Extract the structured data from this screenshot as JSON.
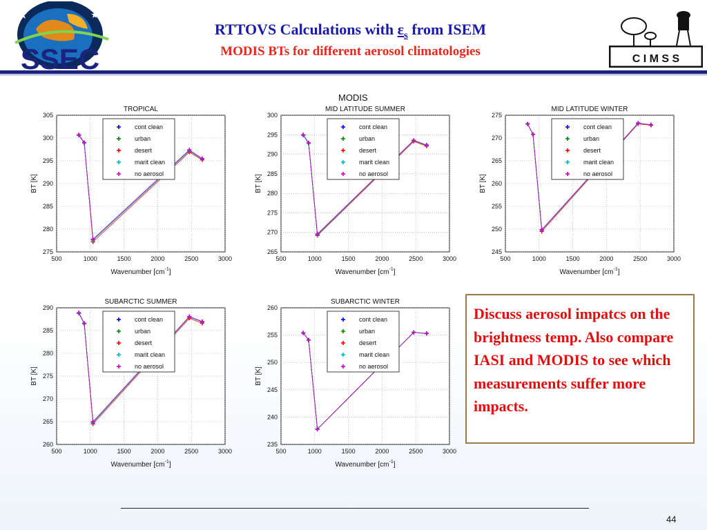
{
  "header": {
    "title_prefix": "RTTOVS Calculations with ",
    "title_symbol": "ε",
    "title_sub": "s",
    "title_suffix": " from ISEM",
    "subtitle": "MODIS BTs for different aerosol climatologies",
    "ssec_logo_text": "SSEC",
    "cimss_logo_text": "C I M S S"
  },
  "figure_supertitle": "MODIS",
  "note_text": "Discuss aerosol impatcs on the brightness temp. Also compare IASI and MODIS to see which measurements suffer more impacts.",
  "page_number": "44",
  "colors": {
    "title_blue": "#1a1aa8",
    "title_red": "#e8281c",
    "header_rule": "#1a237e",
    "note_text": "#e01010",
    "note_border": "#9a7a4a"
  },
  "chart_data": [
    {
      "type": "line",
      "title": "TROPICAL",
      "xlabel": "Wavenumber [cm",
      "xlabel_sup": "-1",
      "xlabel_end": "]",
      "ylabel": "BT [K]",
      "xlim": [
        500,
        3000
      ],
      "ylim": [
        275,
        305
      ],
      "xticks": [
        500,
        1000,
        1500,
        2000,
        2500,
        3000
      ],
      "yticks": [
        275,
        280,
        285,
        290,
        295,
        300,
        305
      ],
      "grid": true,
      "legend_position": "top-center",
      "x": [
        830,
        910,
        1040,
        2470,
        2660
      ],
      "series": [
        {
          "name": "cont clean",
          "color": "#0000ff",
          "values": [
            300.6,
            298.9,
            277.6,
            297.2,
            295.4
          ]
        },
        {
          "name": "urban",
          "color": "#008800",
          "values": [
            300.6,
            298.9,
            277.6,
            297.2,
            295.4
          ]
        },
        {
          "name": "desert",
          "color": "#ff0000",
          "values": [
            300.7,
            299.0,
            277.2,
            296.9,
            295.2
          ]
        },
        {
          "name": "marit clean",
          "color": "#00bbbb",
          "values": [
            300.6,
            298.9,
            277.6,
            297.2,
            295.4
          ]
        },
        {
          "name": "no aerosol",
          "color": "#cc00cc",
          "values": [
            300.7,
            299.0,
            277.8,
            297.4,
            295.5
          ]
        }
      ]
    },
    {
      "type": "line",
      "title": "MID LATITUDE SUMMER",
      "xlabel": "Wavenumber [cm",
      "xlabel_sup": "-1",
      "xlabel_end": "]",
      "ylabel": "BT [K]",
      "xlim": [
        500,
        3000
      ],
      "ylim": [
        265,
        300
      ],
      "xticks": [
        500,
        1000,
        1500,
        2000,
        2500,
        3000
      ],
      "yticks": [
        265,
        270,
        275,
        280,
        285,
        290,
        295,
        300
      ],
      "grid": true,
      "legend_position": "top-center",
      "x": [
        830,
        910,
        1040,
        2470,
        2660
      ],
      "series": [
        {
          "name": "cont clean",
          "color": "#0000ff",
          "values": [
            294.9,
            292.8,
            269.4,
            293.5,
            292.3
          ]
        },
        {
          "name": "urban",
          "color": "#008800",
          "values": [
            294.9,
            292.8,
            269.4,
            293.5,
            292.3
          ]
        },
        {
          "name": "desert",
          "color": "#ff0000",
          "values": [
            295.0,
            292.9,
            269.2,
            293.3,
            292.1
          ]
        },
        {
          "name": "marit clean",
          "color": "#00bbbb",
          "values": [
            294.9,
            292.8,
            269.4,
            293.5,
            292.3
          ]
        },
        {
          "name": "no aerosol",
          "color": "#cc00cc",
          "values": [
            295.0,
            292.9,
            269.6,
            293.6,
            292.4
          ]
        }
      ]
    },
    {
      "type": "line",
      "title": "MID LATITUDE WINTER",
      "xlabel": "Wavenumber [cm",
      "xlabel_sup": "-1",
      "xlabel_end": "]",
      "ylabel": "BT [K]",
      "xlim": [
        500,
        3000
      ],
      "ylim": [
        245,
        275
      ],
      "xticks": [
        500,
        1000,
        1500,
        2000,
        2500,
        3000
      ],
      "yticks": [
        245,
        250,
        255,
        260,
        265,
        270,
        275
      ],
      "grid": true,
      "legend_position": "top-center",
      "x": [
        830,
        910,
        1040,
        2470,
        2660
      ],
      "series": [
        {
          "name": "cont clean",
          "color": "#0000ff",
          "values": [
            273.1,
            270.8,
            249.8,
            273.2,
            272.9
          ]
        },
        {
          "name": "urban",
          "color": "#008800",
          "values": [
            273.1,
            270.8,
            249.8,
            273.2,
            272.9
          ]
        },
        {
          "name": "desert",
          "color": "#ff0000",
          "values": [
            273.1,
            270.8,
            249.5,
            273.1,
            272.8
          ]
        },
        {
          "name": "marit clean",
          "color": "#00bbbb",
          "values": [
            273.1,
            270.8,
            249.8,
            273.2,
            272.9
          ]
        },
        {
          "name": "no aerosol",
          "color": "#cc00cc",
          "values": [
            273.1,
            270.8,
            249.9,
            273.3,
            272.9
          ]
        }
      ]
    },
    {
      "type": "line",
      "title": "SUBARCTIC SUMMER",
      "xlabel": "Wavenumber [cm",
      "xlabel_sup": "-1",
      "xlabel_end": "]",
      "ylabel": "BT [K]",
      "xlim": [
        500,
        3000
      ],
      "ylim": [
        260,
        290
      ],
      "xticks": [
        500,
        1000,
        1500,
        2000,
        2500,
        3000
      ],
      "yticks": [
        260,
        265,
        270,
        275,
        280,
        285,
        290
      ],
      "grid": true,
      "legend_position": "top-center",
      "x": [
        830,
        910,
        1040,
        2470,
        2660
      ],
      "series": [
        {
          "name": "cont clean",
          "color": "#0000ff",
          "values": [
            288.8,
            286.5,
            264.8,
            288.0,
            286.9
          ]
        },
        {
          "name": "urban",
          "color": "#008800",
          "values": [
            288.8,
            286.5,
            264.8,
            288.0,
            286.9
          ]
        },
        {
          "name": "desert",
          "color": "#ff0000",
          "values": [
            288.9,
            286.5,
            264.5,
            287.7,
            286.6
          ]
        },
        {
          "name": "marit clean",
          "color": "#00bbbb",
          "values": [
            288.8,
            286.5,
            264.8,
            288.0,
            286.9
          ]
        },
        {
          "name": "no aerosol",
          "color": "#cc00cc",
          "values": [
            288.9,
            286.6,
            265.0,
            288.1,
            287.0
          ]
        }
      ]
    },
    {
      "type": "line",
      "title": "SUBARCTIC WINTER",
      "xlabel": "Wavenumber [cm",
      "xlabel_sup": "-1",
      "xlabel_end": "]",
      "ylabel": "BT [K]",
      "xlim": [
        500,
        3000
      ],
      "ylim": [
        235,
        260
      ],
      "xticks": [
        500,
        1000,
        1500,
        2000,
        2500,
        3000
      ],
      "yticks": [
        235,
        240,
        245,
        250,
        255,
        260
      ],
      "grid": true,
      "legend_position": "top-center",
      "x": [
        830,
        910,
        1040,
        2470,
        2660
      ],
      "series": [
        {
          "name": "cont clean",
          "color": "#0000ff",
          "values": [
            255.4,
            254.1,
            237.8,
            255.5,
            255.3
          ]
        },
        {
          "name": "urban",
          "color": "#008800",
          "values": [
            255.4,
            254.1,
            237.8,
            255.5,
            255.3
          ]
        },
        {
          "name": "desert",
          "color": "#ff0000",
          "values": [
            255.4,
            254.1,
            237.8,
            255.5,
            255.3
          ]
        },
        {
          "name": "marit clean",
          "color": "#00bbbb",
          "values": [
            255.4,
            254.1,
            237.8,
            255.5,
            255.3
          ]
        },
        {
          "name": "no aerosol",
          "color": "#cc00cc",
          "values": [
            255.4,
            254.1,
            237.8,
            255.5,
            255.3
          ]
        }
      ]
    }
  ]
}
